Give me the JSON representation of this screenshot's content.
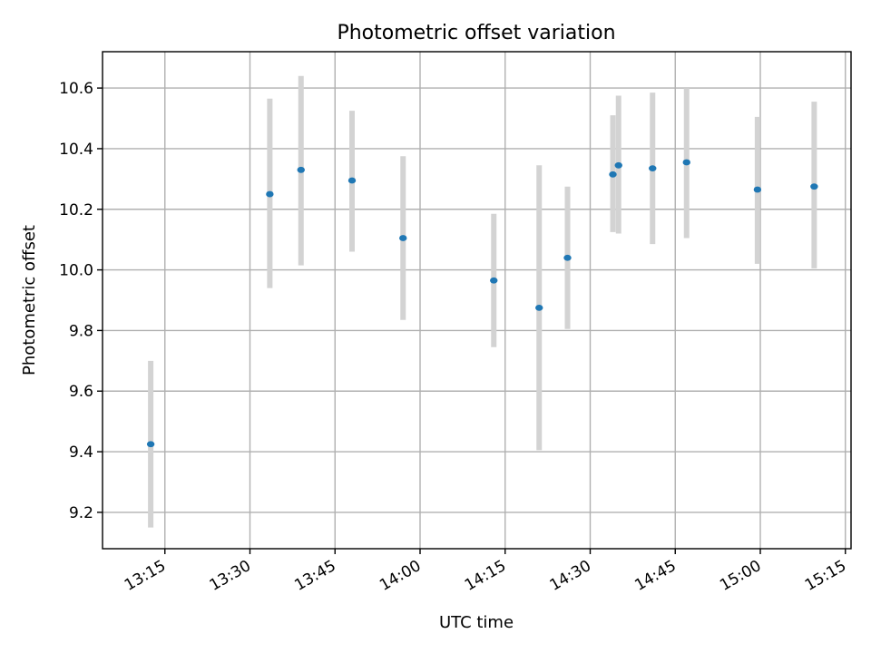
{
  "chart_data": {
    "type": "scatter",
    "title": "Photometric offset variation",
    "xlabel": "UTC time",
    "ylabel": "Photometric offset",
    "grid": true,
    "x_unit": "time of day (HH:MM)",
    "xlim": [
      "13:04",
      "15:16"
    ],
    "ylim": [
      9.08,
      10.72
    ],
    "xticks": [
      "13:15",
      "13:30",
      "13:45",
      "14:00",
      "14:15",
      "14:30",
      "14:45",
      "15:00",
      "15:15"
    ],
    "yticks": [
      9.2,
      9.4,
      9.6,
      9.8,
      10.0,
      10.2,
      10.4,
      10.6
    ],
    "ytick_labels": [
      "9.2",
      "9.4",
      "9.6",
      "9.8",
      "10.0",
      "10.2",
      "10.4",
      "10.6"
    ],
    "point_color": "#1f77b4",
    "errorbar_color": "#d3d3d3",
    "series": [
      {
        "points": [
          {
            "x": "13:12:30",
            "y": 9.425,
            "ylow": 9.15,
            "yhigh": 9.7
          },
          {
            "x": "13:33:30",
            "y": 10.25,
            "ylow": 9.94,
            "yhigh": 10.565
          },
          {
            "x": "13:39:00",
            "y": 10.33,
            "ylow": 10.015,
            "yhigh": 10.64
          },
          {
            "x": "13:48:00",
            "y": 10.295,
            "ylow": 10.06,
            "yhigh": 10.525
          },
          {
            "x": "13:57:00",
            "y": 10.105,
            "ylow": 9.835,
            "yhigh": 10.375
          },
          {
            "x": "14:13:00",
            "y": 9.965,
            "ylow": 9.745,
            "yhigh": 10.185
          },
          {
            "x": "14:21:00",
            "y": 9.875,
            "ylow": 9.405,
            "yhigh": 10.345
          },
          {
            "x": "14:26:00",
            "y": 10.04,
            "ylow": 9.805,
            "yhigh": 10.275
          },
          {
            "x": "14:34:00",
            "y": 10.315,
            "ylow": 10.125,
            "yhigh": 10.51
          },
          {
            "x": "14:35:00",
            "y": 10.345,
            "ylow": 10.12,
            "yhigh": 10.575
          },
          {
            "x": "14:41:00",
            "y": 10.335,
            "ylow": 10.085,
            "yhigh": 10.585
          },
          {
            "x": "14:47:00",
            "y": 10.355,
            "ylow": 10.105,
            "yhigh": 10.6
          },
          {
            "x": "14:59:30",
            "y": 10.265,
            "ylow": 10.02,
            "yhigh": 10.505
          },
          {
            "x": "15:09:30",
            "y": 10.275,
            "ylow": 10.005,
            "yhigh": 10.555
          }
        ]
      }
    ]
  }
}
